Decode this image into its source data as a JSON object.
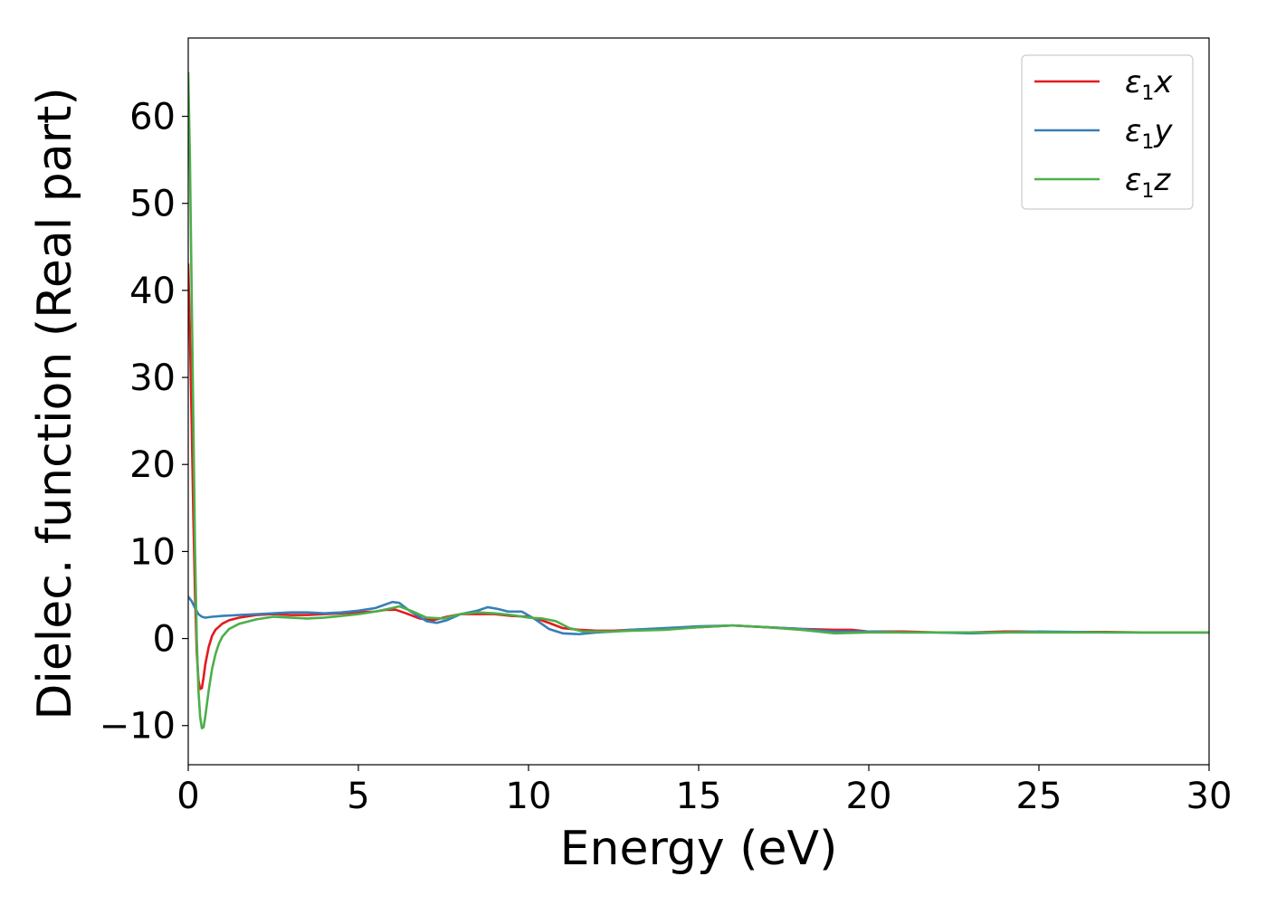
{
  "chart_data": {
    "type": "line",
    "title": "",
    "xlabel": "Energy (eV)",
    "ylabel": "Dielec. function (Real part)",
    "xlim": [
      0,
      30
    ],
    "ylim": [
      -14.5,
      69
    ],
    "xticks": [
      0,
      5,
      10,
      15,
      20,
      25,
      30
    ],
    "xtick_labels": [
      "0",
      "5",
      "10",
      "15",
      "20",
      "25",
      "30"
    ],
    "yticks": [
      -10,
      0,
      10,
      20,
      30,
      40,
      50,
      60
    ],
    "ytick_labels": [
      "−10",
      "0",
      "10",
      "20",
      "30",
      "40",
      "50",
      "60"
    ],
    "grid": false,
    "legend_position": "top-right",
    "series": [
      {
        "name": "ε1x",
        "color": "#e41a1c",
        "x": [
          0,
          0.05,
          0.1,
          0.15,
          0.2,
          0.25,
          0.3,
          0.35,
          0.4,
          0.45,
          0.5,
          0.6,
          0.7,
          0.8,
          1.0,
          1.2,
          1.5,
          2.0,
          2.5,
          3.0,
          3.5,
          4.0,
          4.5,
          5.0,
          5.5,
          5.8,
          6.1,
          6.4,
          6.8,
          7.2,
          7.6,
          8.0,
          8.5,
          9.0,
          9.5,
          10.0,
          10.3,
          10.6,
          11.0,
          11.5,
          12.0,
          12.5,
          13.0,
          14.0,
          15.0,
          16.0,
          17.0,
          18.0,
          19.0,
          19.5,
          20.0,
          21.0,
          22.0,
          23.0,
          24.0,
          24.5,
          25.0,
          26.0,
          27.0,
          28.0,
          29.0,
          30.0
        ],
        "y": [
          43.0,
          35.0,
          25.0,
          14.0,
          5.0,
          -1.5,
          -4.8,
          -5.8,
          -5.7,
          -4.5,
          -3.0,
          -1.0,
          0.3,
          1.0,
          1.7,
          2.1,
          2.4,
          2.7,
          2.8,
          2.7,
          2.7,
          2.8,
          2.9,
          3.0,
          3.1,
          3.3,
          3.3,
          2.9,
          2.3,
          2.1,
          2.5,
          2.8,
          2.8,
          2.8,
          2.6,
          2.5,
          2.2,
          1.8,
          1.2,
          1.0,
          0.9,
          0.9,
          1.0,
          1.1,
          1.3,
          1.5,
          1.3,
          1.1,
          1.0,
          1.0,
          0.8,
          0.8,
          0.7,
          0.7,
          0.8,
          0.8,
          0.75,
          0.75,
          0.75,
          0.7,
          0.7,
          0.7
        ]
      },
      {
        "name": "ε1y",
        "color": "#377eb8",
        "x": [
          0,
          0.1,
          0.2,
          0.3,
          0.4,
          0.5,
          0.7,
          1.0,
          1.5,
          2.0,
          2.5,
          3.0,
          3.5,
          4.0,
          4.5,
          5.0,
          5.5,
          6.0,
          6.2,
          6.5,
          7.0,
          7.3,
          7.6,
          8.0,
          8.5,
          8.8,
          9.1,
          9.4,
          9.8,
          10.2,
          10.6,
          11.0,
          11.5,
          12.0,
          12.5,
          13.0,
          14.0,
          15.0,
          16.0,
          17.0,
          18.0,
          19.0,
          20.0,
          21.0,
          22.0,
          23.0,
          24.0,
          25.0,
          26.0,
          27.0,
          28.0,
          29.0,
          30.0
        ],
        "y": [
          4.8,
          4.3,
          3.5,
          2.8,
          2.5,
          2.4,
          2.5,
          2.6,
          2.7,
          2.8,
          2.9,
          3.0,
          3.0,
          2.9,
          3.0,
          3.2,
          3.5,
          4.2,
          4.1,
          3.2,
          2.0,
          1.8,
          2.1,
          2.8,
          3.2,
          3.6,
          3.4,
          3.1,
          3.1,
          2.2,
          1.1,
          0.6,
          0.5,
          0.7,
          0.8,
          1.0,
          1.2,
          1.4,
          1.5,
          1.3,
          1.1,
          0.8,
          0.8,
          0.7,
          0.7,
          0.6,
          0.7,
          0.8,
          0.75,
          0.7,
          0.7,
          0.7,
          0.7
        ]
      },
      {
        "name": "ε1z",
        "color": "#4daf4a",
        "x": [
          0,
          0.05,
          0.1,
          0.15,
          0.2,
          0.25,
          0.3,
          0.35,
          0.4,
          0.45,
          0.5,
          0.6,
          0.7,
          0.8,
          0.9,
          1.0,
          1.2,
          1.5,
          2.0,
          2.5,
          3.0,
          3.5,
          4.0,
          4.5,
          5.0,
          5.5,
          6.0,
          6.2,
          6.6,
          7.0,
          7.5,
          8.0,
          8.5,
          9.0,
          9.5,
          10.0,
          10.4,
          10.8,
          11.2,
          11.6,
          12.0,
          12.5,
          13.0,
          14.0,
          15.0,
          16.0,
          17.0,
          18.0,
          18.5,
          19.0,
          20.0,
          21.0,
          22.0,
          23.0,
          24.0,
          25.0,
          26.0,
          27.0,
          28.0,
          29.0,
          30.0
        ],
        "y": [
          65.0,
          55.0,
          40.0,
          25.0,
          10.0,
          0.0,
          -6.0,
          -9.0,
          -10.3,
          -10.2,
          -9.0,
          -6.0,
          -3.5,
          -1.8,
          -0.6,
          0.2,
          1.1,
          1.7,
          2.2,
          2.5,
          2.4,
          2.3,
          2.4,
          2.6,
          2.8,
          3.1,
          3.5,
          3.7,
          3.1,
          2.4,
          2.3,
          2.8,
          3.0,
          2.9,
          2.7,
          2.4,
          2.3,
          2.0,
          1.2,
          0.8,
          0.8,
          0.8,
          0.9,
          1.0,
          1.3,
          1.5,
          1.3,
          1.0,
          0.8,
          0.6,
          0.7,
          0.7,
          0.7,
          0.7,
          0.7,
          0.7,
          0.7,
          0.7,
          0.7,
          0.7,
          0.7
        ]
      }
    ]
  }
}
